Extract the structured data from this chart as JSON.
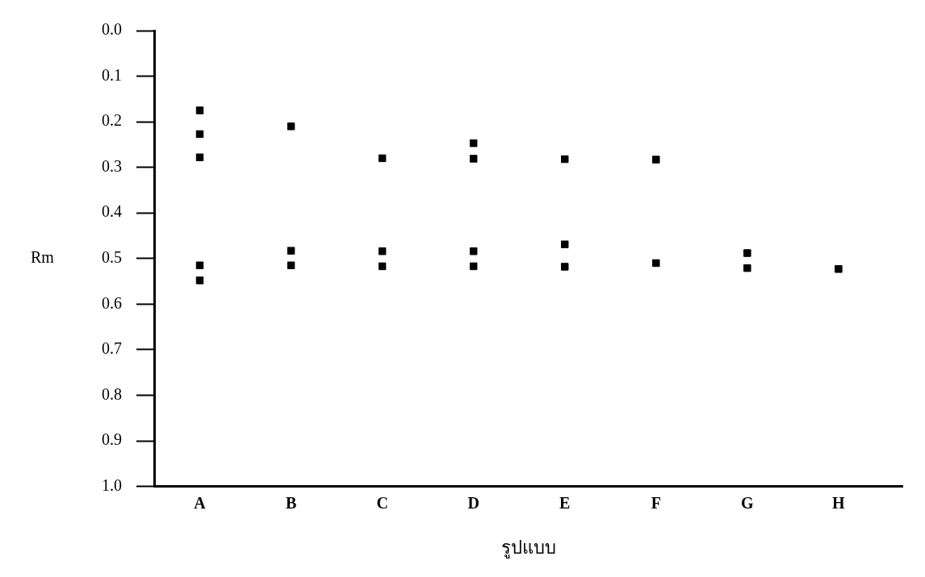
{
  "chart_data": {
    "type": "scatter",
    "xlabel": "รูปแบบ",
    "ylabel": "Rm",
    "categories": [
      "A",
      "B",
      "C",
      "D",
      "E",
      "F",
      "G",
      "H"
    ],
    "series": [
      {
        "color": "#000000",
        "x": [
          "A",
          "A",
          "A",
          "A",
          "A",
          "B",
          "B",
          "B",
          "C",
          "C",
          "C",
          "D",
          "D",
          "D",
          "D",
          "E",
          "E",
          "E",
          "F",
          "F",
          "G",
          "G",
          "H"
        ],
        "values": [
          0.175,
          0.227,
          0.278,
          0.515,
          0.548,
          0.21,
          0.483,
          0.515,
          0.28,
          0.484,
          0.517,
          0.247,
          0.281,
          0.484,
          0.517,
          0.282,
          0.469,
          0.518,
          0.283,
          0.51,
          0.488,
          0.521,
          0.523
        ]
      }
    ],
    "ylim": [
      1.0,
      0.0
    ],
    "yticks": [
      {
        "value": 0,
        "label": "0.0"
      },
      {
        "value": 0.1,
        "label": "0.1"
      },
      {
        "value": 0.2,
        "label": "0.2"
      },
      {
        "value": 0.3,
        "label": "0.3"
      },
      {
        "value": 0.4,
        "label": "0.4"
      },
      {
        "value": 0.5,
        "label": "0.5"
      },
      {
        "value": 0.6,
        "label": "0.6"
      },
      {
        "value": 0.7,
        "label": "0.7"
      },
      {
        "value": 0.8,
        "label": "0.8"
      },
      {
        "value": 0.9,
        "label": "0.9"
      },
      {
        "value": 1,
        "label": "1.0"
      }
    ],
    "grid": false,
    "legend": false,
    "marker": "square"
  }
}
